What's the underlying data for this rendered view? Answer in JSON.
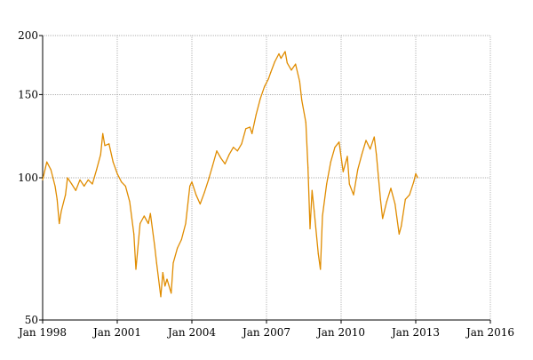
{
  "chart_data": {
    "type": "line",
    "title": "",
    "xlabel": "",
    "ylabel": "",
    "y_scale": "log",
    "grid": true,
    "x_ticks": [
      "Jan 1998",
      "Jan 2001",
      "Jan 2004",
      "Jan 2007",
      "Jan 2010",
      "Jan 2013",
      "Jan 2016"
    ],
    "y_ticks": [
      50,
      100,
      150,
      200
    ],
    "xlim": [
      "1998-01",
      "2016-01"
    ],
    "ylim": [
      50,
      200
    ],
    "line_color": "#e08c00",
    "series": [
      {
        "values": [
          [
            "1998-01",
            99
          ],
          [
            "1998-03",
            108
          ],
          [
            "1998-05",
            104
          ],
          [
            "1998-07",
            96
          ],
          [
            "1998-08",
            90
          ],
          [
            "1998-09",
            80
          ],
          [
            "1998-10",
            85
          ],
          [
            "1998-12",
            92
          ],
          [
            "1999-01",
            100
          ],
          [
            "1999-03",
            97
          ],
          [
            "1999-05",
            94
          ],
          [
            "1999-07",
            99
          ],
          [
            "1999-09",
            96
          ],
          [
            "1999-11",
            99
          ],
          [
            "2000-01",
            97
          ],
          [
            "2000-03",
            104
          ],
          [
            "2000-05",
            112
          ],
          [
            "2000-06",
            124
          ],
          [
            "2000-07",
            117
          ],
          [
            "2000-09",
            118
          ],
          [
            "2000-11",
            108
          ],
          [
            "2001-01",
            102
          ],
          [
            "2001-03",
            98
          ],
          [
            "2001-05",
            96
          ],
          [
            "2001-07",
            89
          ],
          [
            "2001-09",
            76
          ],
          [
            "2001-10",
            64
          ],
          [
            "2001-12",
            80
          ],
          [
            "2002-02",
            83
          ],
          [
            "2002-04",
            80
          ],
          [
            "2002-05",
            84
          ],
          [
            "2002-07",
            72
          ],
          [
            "2002-08",
            66
          ],
          [
            "2002-10",
            56
          ],
          [
            "2002-11",
            63
          ],
          [
            "2002-12",
            59
          ],
          [
            "2003-01",
            61
          ],
          [
            "2003-03",
            57
          ],
          [
            "2003-04",
            66
          ],
          [
            "2003-06",
            71
          ],
          [
            "2003-08",
            74
          ],
          [
            "2003-10",
            80
          ],
          [
            "2003-12",
            96
          ],
          [
            "2004-01",
            98
          ],
          [
            "2004-03",
            92
          ],
          [
            "2004-05",
            88
          ],
          [
            "2004-07",
            93
          ],
          [
            "2004-09",
            99
          ],
          [
            "2004-11",
            106
          ],
          [
            "2005-01",
            114
          ],
          [
            "2005-03",
            110
          ],
          [
            "2005-05",
            107
          ],
          [
            "2005-07",
            112
          ],
          [
            "2005-09",
            116
          ],
          [
            "2005-11",
            114
          ],
          [
            "2006-01",
            118
          ],
          [
            "2006-03",
            127
          ],
          [
            "2006-05",
            128
          ],
          [
            "2006-06",
            124
          ],
          [
            "2006-08",
            136
          ],
          [
            "2006-10",
            147
          ],
          [
            "2006-12",
            156
          ],
          [
            "2007-02",
            162
          ],
          [
            "2007-03",
            167
          ],
          [
            "2007-05",
            176
          ],
          [
            "2007-07",
            183
          ],
          [
            "2007-08",
            179
          ],
          [
            "2007-10",
            185
          ],
          [
            "2007-11",
            175
          ],
          [
            "2008-01",
            169
          ],
          [
            "2008-03",
            174
          ],
          [
            "2008-05",
            160
          ],
          [
            "2008-06",
            146
          ],
          [
            "2008-08",
            131
          ],
          [
            "2008-09",
            105
          ],
          [
            "2008-10",
            78
          ],
          [
            "2008-11",
            94
          ],
          [
            "2008-12",
            85
          ],
          [
            "2009-02",
            69
          ],
          [
            "2009-03",
            64
          ],
          [
            "2009-04",
            83
          ],
          [
            "2009-06",
            97
          ],
          [
            "2009-08",
            108
          ],
          [
            "2009-10",
            116
          ],
          [
            "2009-12",
            119
          ],
          [
            "2010-02",
            103
          ],
          [
            "2010-04",
            111
          ],
          [
            "2010-05",
            97
          ],
          [
            "2010-07",
            92
          ],
          [
            "2010-09",
            104
          ],
          [
            "2010-11",
            112
          ],
          [
            "2011-01",
            120
          ],
          [
            "2011-03",
            115
          ],
          [
            "2011-05",
            122
          ],
          [
            "2011-06",
            112
          ],
          [
            "2011-08",
            90
          ],
          [
            "2011-09",
            82
          ],
          [
            "2011-11",
            89
          ],
          [
            "2012-01",
            95
          ],
          [
            "2012-03",
            88
          ],
          [
            "2012-05",
            76
          ],
          [
            "2012-06",
            79
          ],
          [
            "2012-08",
            90
          ],
          [
            "2012-10",
            92
          ],
          [
            "2012-12",
            98
          ],
          [
            "2013-01",
            102
          ],
          [
            "2013-02",
            100
          ]
        ]
      }
    ]
  }
}
